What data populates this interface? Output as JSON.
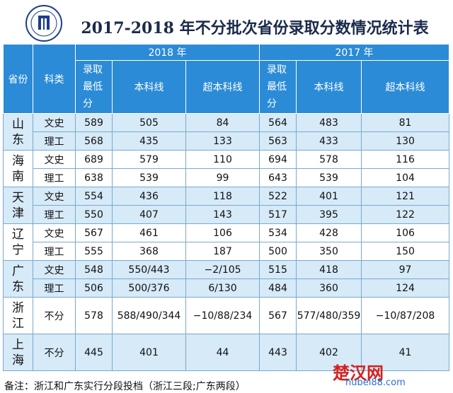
{
  "header": {
    "title": "2017-2018 年不分批次省份录取分数情况统计表"
  },
  "table": {
    "years": [
      "2018 年",
      "2017 年"
    ],
    "columns": [
      "省份",
      "科类",
      "录取最低分",
      "本科线",
      "超本科线",
      "录取最低分",
      "本科线",
      "超本科线"
    ],
    "provinces": [
      {
        "name": "山东",
        "rows": [
          [
            "文史",
            "589",
            "505",
            "84",
            "564",
            "483",
            "81"
          ],
          [
            "理工",
            "568",
            "435",
            "133",
            "563",
            "433",
            "130"
          ]
        ]
      },
      {
        "name": "海南",
        "rows": [
          [
            "文史",
            "689",
            "579",
            "110",
            "694",
            "578",
            "116"
          ],
          [
            "理工",
            "638",
            "539",
            "99",
            "643",
            "539",
            "104"
          ]
        ]
      },
      {
        "name": "天津",
        "rows": [
          [
            "文史",
            "554",
            "436",
            "118",
            "522",
            "401",
            "121"
          ],
          [
            "理工",
            "550",
            "407",
            "143",
            "517",
            "395",
            "122"
          ]
        ]
      },
      {
        "name": "辽宁",
        "rows": [
          [
            "文史",
            "567",
            "461",
            "106",
            "534",
            "428",
            "106"
          ],
          [
            "理工",
            "555",
            "368",
            "187",
            "500",
            "350",
            "150"
          ]
        ]
      },
      {
        "name": "广东",
        "rows": [
          [
            "文史",
            "548",
            "550/443",
            "−2/105",
            "515",
            "418",
            "97"
          ],
          [
            "理工",
            "506",
            "500/376",
            "6/130",
            "484",
            "360",
            "124"
          ]
        ]
      },
      {
        "name": "浙江",
        "rows": [
          [
            "不分",
            "578",
            "588/490/344",
            "−10/88/234",
            "567",
            "577/480/359",
            "−10/87/208"
          ]
        ]
      },
      {
        "name": "上海",
        "rows": [
          [
            "不分",
            "445",
            "401",
            "44",
            "443",
            "402",
            "41"
          ]
        ]
      }
    ]
  },
  "note": "备注：浙江和广东实行分段投档（浙江三段;广东两段）",
  "watermark": {
    "name": "楚汉网",
    "url": "hubei88.com"
  }
}
